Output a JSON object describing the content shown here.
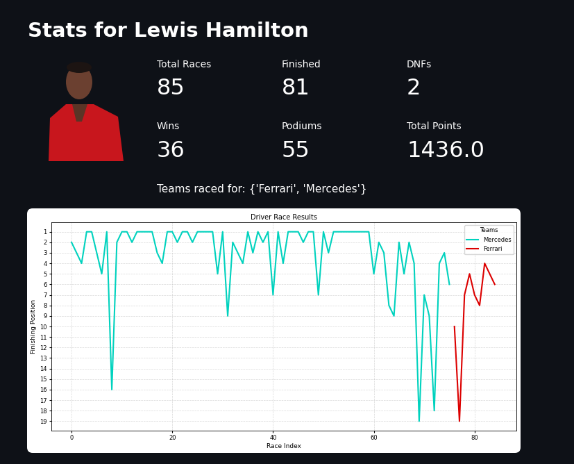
{
  "page": {
    "title": "Stats for Lewis Hamilton",
    "metrics": [
      {
        "label": "Total Races",
        "value": 85
      },
      {
        "label": "Finished",
        "value": 81
      },
      {
        "label": "DNFs",
        "value": 2
      },
      {
        "label": "Wins",
        "value": 36
      },
      {
        "label": "Podiums",
        "value": 55
      },
      {
        "label": "Total Points",
        "value": 1436.0
      }
    ],
    "teams_text": "Teams raced for: {'Ferrari', 'Mercedes'}"
  },
  "chart_data": {
    "type": "line",
    "title": "Driver Race Results",
    "x_label": "Race Index",
    "y_label": "Finishing Position",
    "x": [
      0,
      1,
      2,
      3,
      4,
      5,
      6,
      7,
      8,
      9,
      10,
      11,
      12,
      13,
      14,
      15,
      16,
      17,
      18,
      19,
      20,
      21,
      22,
      23,
      24,
      25,
      26,
      27,
      28,
      29,
      30,
      31,
      32,
      33,
      34,
      35,
      36,
      37,
      38,
      39,
      40,
      41,
      42,
      43,
      44,
      45,
      46,
      47,
      48,
      49,
      50,
      51,
      52,
      53,
      54,
      55,
      56,
      57,
      58,
      59,
      60,
      61,
      62,
      63,
      64,
      65,
      66,
      67,
      68,
      69,
      70,
      71,
      72,
      73,
      74,
      75,
      76,
      77,
      78,
      79,
      80,
      81,
      82,
      83,
      84
    ],
    "series": [
      {
        "name": "Mercedes",
        "color": "#00d2be",
        "values": [
          2,
          3,
          4,
          1,
          1,
          3,
          5,
          1,
          16,
          2,
          1,
          1,
          2,
          1,
          1,
          1,
          1,
          3,
          4,
          1,
          1,
          2,
          1,
          1,
          2,
          1,
          1,
          1,
          1,
          5,
          1,
          9,
          2,
          3,
          4,
          1,
          3,
          1,
          2,
          1,
          7,
          1,
          4,
          1,
          1,
          1,
          2,
          1,
          1,
          7,
          1,
          3,
          1,
          1,
          1,
          1,
          1,
          1,
          1,
          1,
          5,
          2,
          3,
          8,
          9,
          2,
          5,
          2,
          4,
          19,
          7,
          9,
          18,
          4,
          3,
          6,
          null,
          null,
          null,
          null,
          null,
          null,
          null,
          null,
          null
        ]
      },
      {
        "name": "Ferrari",
        "color": "#dc0000",
        "values": [
          null,
          null,
          null,
          null,
          null,
          null,
          null,
          null,
          null,
          null,
          null,
          null,
          null,
          null,
          null,
          null,
          null,
          null,
          null,
          null,
          null,
          null,
          null,
          null,
          null,
          null,
          null,
          null,
          null,
          null,
          null,
          null,
          null,
          null,
          null,
          null,
          null,
          null,
          null,
          null,
          null,
          null,
          null,
          null,
          null,
          null,
          null,
          null,
          null,
          null,
          null,
          null,
          null,
          null,
          null,
          null,
          null,
          null,
          null,
          null,
          null,
          null,
          null,
          null,
          null,
          null,
          null,
          null,
          null,
          null,
          null,
          null,
          null,
          null,
          null,
          null,
          10,
          19,
          7,
          5,
          7,
          8,
          4,
          5,
          6
        ]
      }
    ],
    "xlim": [
      -4.0,
      88.3
    ],
    "xticks": [
      0,
      20,
      40,
      60,
      80
    ],
    "ylim": [
      19.9,
      0.1
    ],
    "yticks": [
      1,
      2,
      3,
      4,
      5,
      6,
      7,
      8,
      9,
      10,
      11,
      12,
      13,
      14,
      15,
      16,
      17,
      18,
      19
    ],
    "grid": true,
    "legend": "upper right",
    "legend_title": "Teams"
  }
}
